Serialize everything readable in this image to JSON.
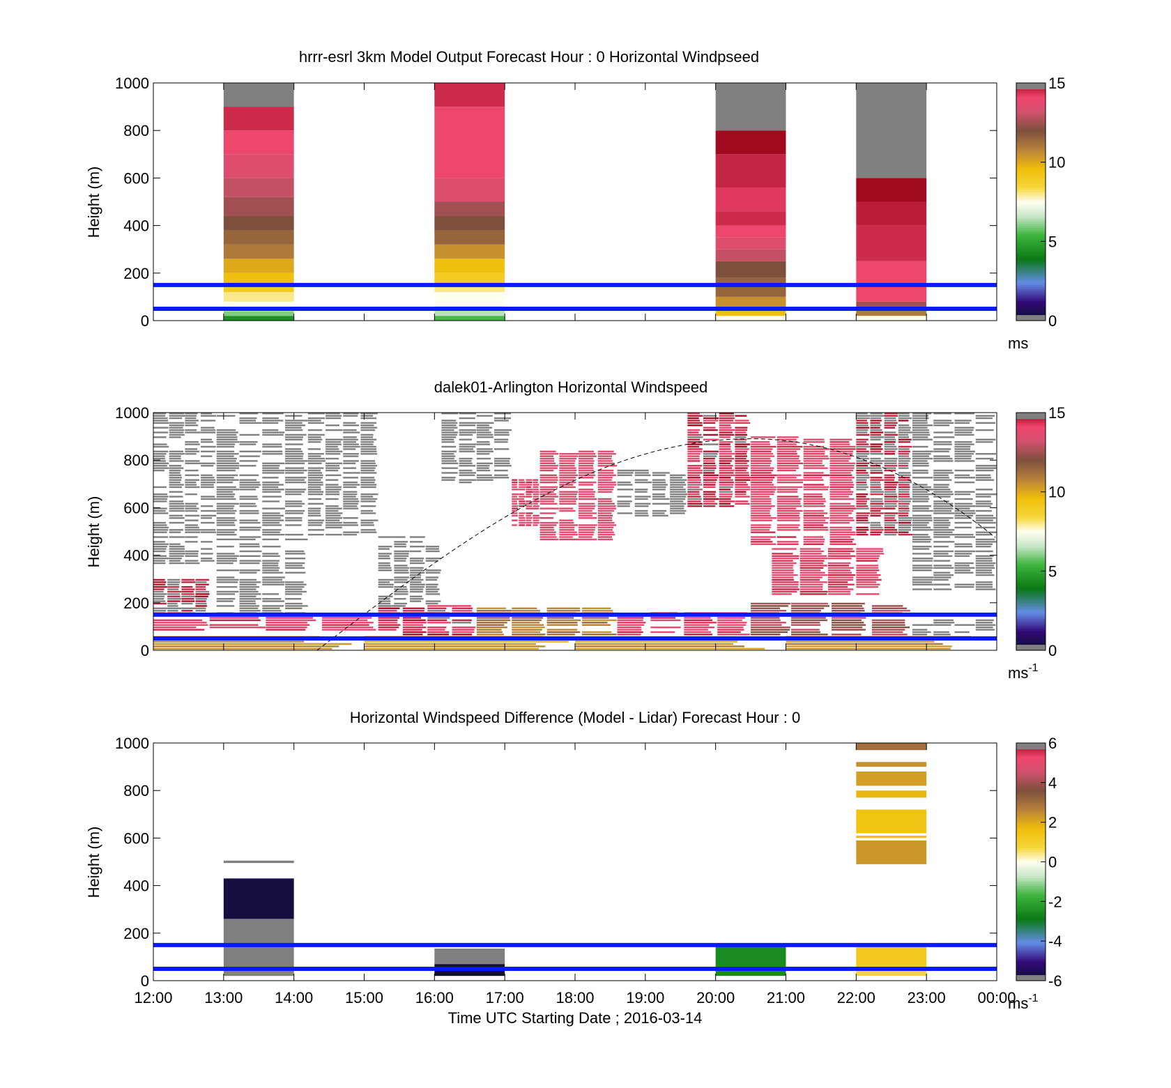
{
  "figure": {
    "xlabel": "Time UTC  Starting Date ; 2016-03-14",
    "x_ticks": [
      "12:00",
      "13:00",
      "14:00",
      "15:00",
      "16:00",
      "17:00",
      "18:00",
      "19:00",
      "20:00",
      "21:00",
      "22:00",
      "23:00",
      "00:00"
    ]
  },
  "chart_data": [
    {
      "type": "heatmap",
      "title": "hrrr-esrl 3km Model Output   Forecast Hour : 0 Horizontal Windpseed",
      "ylabel": "Height (m)",
      "ylim": [
        0,
        1000
      ],
      "y_ticks": [
        "0",
        "200",
        "400",
        "600",
        "800",
        "1000"
      ],
      "xlim": [
        12,
        24
      ],
      "colorbar": {
        "ticks": [
          "0",
          "5",
          "10",
          "15"
        ],
        "range": [
          0,
          15
        ],
        "unit": "ms"
      },
      "reference_lines_m": [
        50,
        150
      ],
      "columns": [
        {
          "x0": 13,
          "x1": 14,
          "cells": [
            [
              0,
              20,
              4.5
            ],
            [
              20,
              40,
              6
            ],
            [
              40,
              80,
              7.5
            ],
            [
              80,
              120,
              8
            ],
            [
              120,
              140,
              9
            ],
            [
              140,
              200,
              9.5
            ],
            [
              200,
              260,
              10
            ],
            [
              260,
              320,
              11
            ],
            [
              320,
              380,
              11.5
            ],
            [
              380,
              440,
              12
            ],
            [
              440,
              520,
              12.5
            ],
            [
              520,
              600,
              13
            ],
            [
              600,
              700,
              13.5
            ],
            [
              700,
              800,
              14
            ],
            [
              800,
              900,
              14.5
            ],
            [
              900,
              1000,
              16
            ]
          ]
        },
        {
          "x0": 16,
          "x1": 17,
          "cells": [
            [
              0,
              20,
              5.5
            ],
            [
              20,
              60,
              6.5
            ],
            [
              60,
              120,
              7.5
            ],
            [
              120,
              140,
              8
            ],
            [
              140,
              200,
              9
            ],
            [
              200,
              260,
              9.5
            ],
            [
              260,
              320,
              10.5
            ],
            [
              320,
              380,
              11.5
            ],
            [
              380,
              440,
              12
            ],
            [
              440,
              500,
              12.5
            ],
            [
              500,
              600,
              13.5
            ],
            [
              600,
              900,
              14
            ],
            [
              900,
              1000,
              14.5
            ]
          ]
        },
        {
          "x0": 20,
          "x1": 21,
          "cells": [
            [
              0,
              20,
              7.5
            ],
            [
              20,
              40,
              9.5
            ],
            [
              40,
              100,
              10.5
            ],
            [
              100,
              180,
              11.5
            ],
            [
              180,
              250,
              12
            ],
            [
              250,
              300,
              13
            ],
            [
              300,
              350,
              13.5
            ],
            [
              350,
              400,
              14
            ],
            [
              400,
              460,
              14.5
            ],
            [
              460,
              560,
              14.3
            ],
            [
              560,
              700,
              14.6
            ],
            [
              700,
              800,
              15
            ],
            [
              800,
              1000,
              16
            ]
          ]
        },
        {
          "x0": 22,
          "x1": 23,
          "cells": [
            [
              0,
              20,
              7.5
            ],
            [
              20,
              40,
              11
            ],
            [
              40,
              80,
              12.5
            ],
            [
              80,
              250,
              14
            ],
            [
              250,
              400,
              14.5
            ],
            [
              400,
              500,
              14.7
            ],
            [
              500,
              600,
              15
            ],
            [
              600,
              1000,
              16
            ]
          ]
        }
      ]
    },
    {
      "type": "heatmap",
      "title": "dalek01-Arlington  Horizontal Windspeed",
      "ylabel": "Height (m)",
      "ylim": [
        0,
        1000
      ],
      "y_ticks": [
        "0",
        "200",
        "400",
        "600",
        "800",
        "1000"
      ],
      "xlim": [
        12,
        24
      ],
      "colorbar": {
        "ticks": [
          "0",
          "5",
          "10",
          "15"
        ],
        "range": [
          0,
          15
        ],
        "unit": "ms-1"
      },
      "reference_lines_m": [
        50,
        150
      ],
      "curve_peak": {
        "x": 20.5,
        "y": 890
      },
      "curve_end_y": 470,
      "curve_start_x": 14.33,
      "curve_half_width_h": 6.17,
      "patches": [
        {
          "x0": 12.0,
          "x1": 12.9,
          "y0": 360,
          "y1": 1000,
          "v": 16
        },
        {
          "x0": 12.9,
          "x1": 14.2,
          "y0": 150,
          "y1": 1000,
          "v": 16
        },
        {
          "x0": 14.2,
          "x1": 15.2,
          "y0": 480,
          "y1": 1000,
          "v": 16
        },
        {
          "x0": 15.2,
          "x1": 16.1,
          "y0": 150,
          "y1": 480,
          "v": 16
        },
        {
          "x0": 16.1,
          "x1": 17.1,
          "y0": 700,
          "y1": 1000,
          "v": 16
        },
        {
          "x0": 17.1,
          "x1": 17.5,
          "y0": 520,
          "y1": 720,
          "v": 14
        },
        {
          "x0": 17.5,
          "x1": 18.6,
          "y0": 460,
          "y1": 840,
          "v": 13.5
        },
        {
          "x0": 18.6,
          "x1": 19.6,
          "y0": 560,
          "y1": 760,
          "v": 16
        },
        {
          "x0": 19.6,
          "x1": 20.5,
          "y0": 600,
          "y1": 1000,
          "v": 14.5
        },
        {
          "x0": 20.5,
          "x1": 22.0,
          "y0": 440,
          "y1": 900,
          "v": 14
        },
        {
          "x0": 22.0,
          "x1": 22.8,
          "y0": 480,
          "y1": 1000,
          "v": 15
        },
        {
          "x0": 22.8,
          "x1": 24.0,
          "y0": 250,
          "y1": 1000,
          "v": 16
        },
        {
          "x0": 20.8,
          "x1": 22.4,
          "y0": 230,
          "y1": 430,
          "v": 14
        },
        {
          "x0": 12.0,
          "x1": 12.8,
          "y0": 150,
          "y1": 300,
          "v": 15
        },
        {
          "x0": 12.0,
          "x1": 15.2,
          "y0": 80,
          "y1": 150,
          "v": 14
        },
        {
          "x0": 15.2,
          "x1": 16.6,
          "y0": 60,
          "y1": 190,
          "v": 14.5
        },
        {
          "x0": 16.6,
          "x1": 18.6,
          "y0": 60,
          "y1": 180,
          "v": 11
        },
        {
          "x0": 18.6,
          "x1": 20.5,
          "y0": 60,
          "y1": 160,
          "v": 14
        },
        {
          "x0": 20.5,
          "x1": 22.8,
          "y0": 60,
          "y1": 200,
          "v": 12.5
        },
        {
          "x0": 22.8,
          "x1": 24.0,
          "y0": 60,
          "y1": 130,
          "v": 16
        },
        {
          "x0": 12.0,
          "x1": 24.0,
          "y0": 0,
          "y1": 60,
          "v": 10.5
        }
      ]
    },
    {
      "type": "heatmap",
      "title": "Horizontal Windspeed Difference (Model - Lidar) Forecast Hour : 0",
      "ylabel": "Height (m)",
      "ylim": [
        0,
        1000
      ],
      "y_ticks": [
        "0",
        "200",
        "400",
        "600",
        "800",
        "1000"
      ],
      "xlim": [
        12,
        24
      ],
      "colorbar": {
        "ticks": [
          "-6",
          "-4",
          "-2",
          "0",
          "2",
          "4",
          "6"
        ],
        "range": [
          -6,
          6
        ],
        "unit": "ms-1"
      },
      "reference_lines_m": [
        50,
        150
      ],
      "columns": [
        {
          "x0": 13,
          "x1": 14,
          "cells": [
            [
              20,
              30,
              -6.5
            ],
            [
              30,
              260,
              6.5
            ],
            [
              260,
              430,
              -5.8
            ],
            [
              495,
              505,
              6.5
            ]
          ]
        },
        {
          "x0": 16,
          "x1": 17,
          "cells": [
            [
              20,
              70,
              -5.8
            ],
            [
              70,
              135,
              6.5
            ]
          ]
        },
        {
          "x0": 20,
          "x1": 21,
          "cells": [
            [
              20,
              150,
              -2.5
            ]
          ]
        },
        {
          "x0": 22,
          "x1": 23,
          "cells": [
            [
              20,
              50,
              0.8
            ],
            [
              50,
              150,
              1.3
            ],
            [
              490,
              590,
              2.3
            ],
            [
              600,
              610,
              1.6
            ],
            [
              620,
              720,
              1.5
            ],
            [
              770,
              800,
              1.8
            ],
            [
              820,
              880,
              2.2
            ],
            [
              900,
              920,
              2.4
            ],
            [
              970,
              1000,
              3.0
            ]
          ]
        }
      ]
    }
  ]
}
